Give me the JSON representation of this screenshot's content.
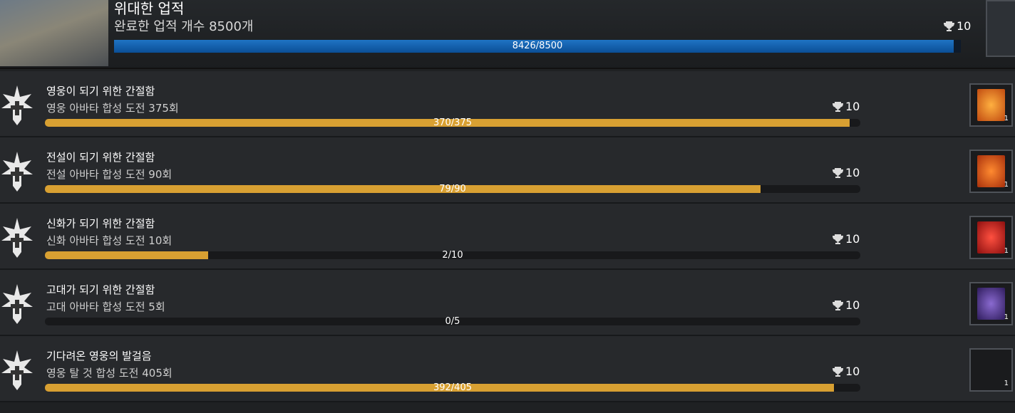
{
  "header": {
    "title": "위대한 업적",
    "subtitle": "완료한 업적 개수 8500개",
    "reward": "10",
    "progress": {
      "current": 8426,
      "total": 8500,
      "label": "8426/8500"
    }
  },
  "achievements": [
    {
      "title": "영웅이 되기 위한 간절함",
      "description": "영웅 아바타 합성 도전 375회",
      "reward": "10",
      "item_count": "1",
      "progress": {
        "current": 370,
        "total": 375,
        "label": "370/375"
      }
    },
    {
      "title": "전설이 되기 위한 간절함",
      "description": "전설 아바타 합성 도전 90회",
      "reward": "10",
      "item_count": "1",
      "progress": {
        "current": 79,
        "total": 90,
        "label": "79/90"
      }
    },
    {
      "title": "신화가 되기 위한 간절함",
      "description": "신화 아바타 합성 도전 10회",
      "reward": "10",
      "item_count": "1",
      "progress": {
        "current": 2,
        "total": 10,
        "label": "2/10"
      }
    },
    {
      "title": "고대가 되기 위한 간절함",
      "description": "고대 아바타 합성 도전 5회",
      "reward": "10",
      "item_count": "1",
      "progress": {
        "current": 0,
        "total": 5,
        "label": "0/5"
      }
    },
    {
      "title": "기다려온 영웅의 발걸음",
      "description": "영웅 탈 것 합성 도전 405회",
      "reward": "10",
      "item_count": "1",
      "progress": {
        "current": 392,
        "total": 405,
        "label": "392/405"
      }
    }
  ]
}
